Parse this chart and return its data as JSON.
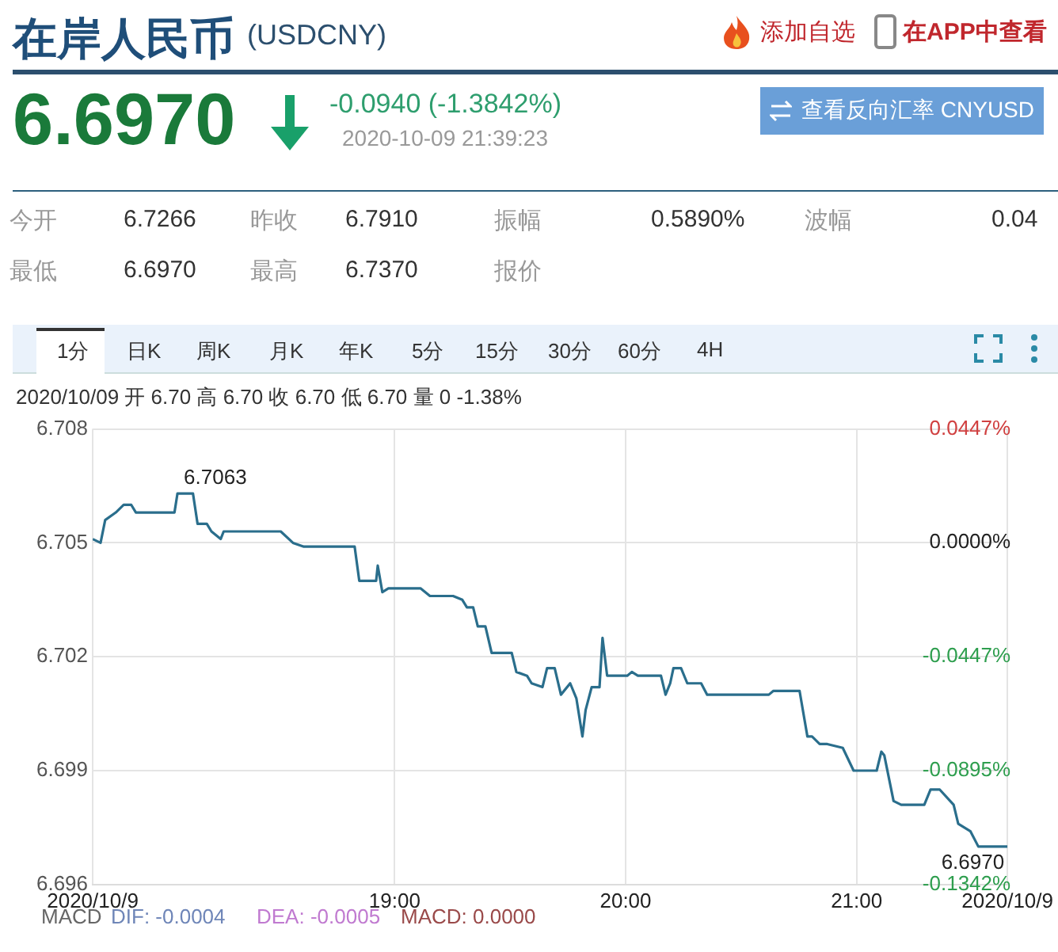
{
  "chart_data": {
    "type": "line",
    "title": "在岸人民币",
    "subtitle": "(USDCNY)",
    "x": [
      17.693,
      17.727,
      17.747,
      17.793,
      17.827,
      17.86,
      17.88,
      18.047,
      18.06,
      18.127,
      18.147,
      18.187,
      18.207,
      18.247,
      18.26,
      18.507,
      18.56,
      18.607,
      18.827,
      18.847,
      18.887,
      18.92,
      18.927,
      18.947,
      18.973,
      19.113,
      19.153,
      19.253,
      19.293,
      19.313,
      19.34,
      19.36,
      19.393,
      19.42,
      19.507,
      19.527,
      19.573,
      19.593,
      19.64,
      19.66,
      19.693,
      19.72,
      19.76,
      19.787,
      19.813,
      19.827,
      19.853,
      19.887,
      19.9,
      19.92,
      20.007,
      20.027,
      20.053,
      20.153,
      20.173,
      20.193,
      20.207,
      20.24,
      20.267,
      20.327,
      20.353,
      20.62,
      20.64,
      20.727,
      20.753,
      20.787,
      20.807,
      20.84,
      20.873,
      20.94,
      20.987,
      21.007,
      21.087,
      21.107,
      21.12,
      21.16,
      21.193,
      21.293,
      21.32,
      21.36,
      21.42,
      21.44,
      21.493,
      21.527,
      21.653
    ],
    "series": [
      {
        "color": "#2a6e8c",
        "values": [
          6.7051,
          6.705,
          6.7056,
          6.7058,
          6.706,
          6.706,
          6.7058,
          6.7058,
          6.7063,
          6.7063,
          6.7055,
          6.7055,
          6.7053,
          6.7051,
          6.7053,
          6.7053,
          6.705,
          6.7049,
          6.7049,
          6.704,
          6.704,
          6.704,
          6.7044,
          6.7037,
          6.7038,
          6.7038,
          6.7036,
          6.7036,
          6.7035,
          6.7033,
          6.7033,
          6.7028,
          6.7028,
          6.7021,
          6.7021,
          6.7016,
          6.7015,
          6.7013,
          6.7012,
          6.7017,
          6.7017,
          6.701,
          6.7013,
          6.7009,
          6.6999,
          6.7006,
          6.7012,
          6.7012,
          6.7025,
          6.7015,
          6.7015,
          6.7016,
          6.7015,
          6.7015,
          6.701,
          6.7013,
          6.7017,
          6.7017,
          6.7013,
          6.7013,
          6.701,
          6.701,
          6.7011,
          6.7011,
          6.7011,
          6.6999,
          6.6999,
          6.6997,
          6.6997,
          6.6996,
          6.699,
          6.699,
          6.699,
          6.6995,
          6.6994,
          6.6982,
          6.6981,
          6.6981,
          6.6985,
          6.6985,
          6.6981,
          6.6976,
          6.6974,
          6.697,
          6.697
        ]
      }
    ],
    "xlim": [
      17.693,
      21.653
    ],
    "xticks": [
      {
        "value": 17.693,
        "label": "2020/10/9"
      },
      {
        "value": 19,
        "label": "19:00"
      },
      {
        "value": 20,
        "label": "20:00"
      },
      {
        "value": 21,
        "label": "21:00"
      },
      {
        "value": 21.653,
        "label": "2020/10/9"
      }
    ],
    "ylim": [
      6.696,
      6.708
    ],
    "yticks": [
      6.696,
      6.699,
      6.702,
      6.705,
      6.708
    ],
    "y2lim": [
      -0.1342,
      0.0447
    ],
    "y2ticks": [
      {
        "value": -0.1342,
        "label": "-0.1342%"
      },
      {
        "value": -0.0895,
        "label": "-0.0895%"
      },
      {
        "value": -0.0447,
        "label": "-0.0447%"
      },
      {
        "value": 0,
        "label": "0.0000%"
      },
      {
        "value": 0.0447,
        "label": "0.0447%"
      }
    ],
    "grid": true,
    "legend": false,
    "marker": "none",
    "line_style": "solid",
    "annotations": [
      "添加自选",
      "在APP中查看",
      "6.6970",
      "-0.0940 (-1.3842%)",
      "2020-10-09 21:39:23",
      "查看反向汇率 CNYUSD",
      "今开",
      "6.7266",
      "昨收",
      "6.7910",
      "振幅",
      "0.5890%",
      "波幅",
      "0.04",
      "最低",
      "6.6970",
      "最高",
      "6.7370",
      "报价",
      "1分",
      "日K",
      "周K",
      "月K",
      "年K",
      "5分",
      "15分",
      "30分",
      "60分",
      "4H",
      "2020/10/09 开 6.70 高 6.70 收 6.70 低 6.70 量 0 -1.38%",
      "MACD",
      "DIF: -0.0004",
      "DEA: -0.0005",
      "MACD: 0.0000",
      {
        "text": "6.7063",
        "x": 18.06,
        "y": 6.7063
      },
      {
        "text": "6.6970",
        "x": 21.653,
        "y": 6.697
      }
    ]
  }
}
